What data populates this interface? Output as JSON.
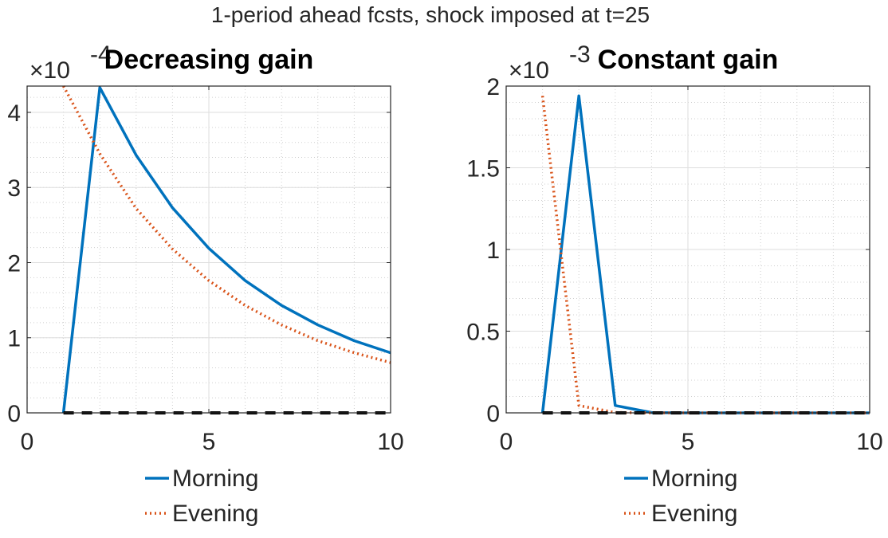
{
  "figure": {
    "suptitle": "1-period ahead fcsts, shock imposed at t=25"
  },
  "chart_data": [
    {
      "type": "line",
      "title": "Decreasing gain",
      "xlabel": "",
      "ylabel": "",
      "xlim": [
        0,
        10
      ],
      "ylim": [
        0,
        4.35
      ],
      "y_exponent_label": "×10",
      "y_exponent_power": "-4",
      "xticks": [
        0,
        5,
        10
      ],
      "yticks": [
        0,
        1,
        2,
        3,
        4
      ],
      "grid": true,
      "minor_grid": true,
      "legend_position": "bottom",
      "series": [
        {
          "name": "Morning",
          "color": "#0072BD",
          "style": "solid",
          "x": [
            1,
            2,
            3,
            4,
            5,
            6,
            7,
            8,
            9,
            10
          ],
          "y": [
            0,
            4.33,
            3.43,
            2.73,
            2.19,
            1.76,
            1.43,
            1.17,
            0.96,
            0.8
          ]
        },
        {
          "name": "Evening",
          "color": "#D95319",
          "style": "dotted",
          "x": [
            1,
            2,
            3,
            4,
            5,
            6,
            7,
            8,
            9,
            10
          ],
          "y": [
            4.35,
            3.45,
            2.72,
            2.18,
            1.76,
            1.43,
            1.17,
            0.96,
            0.8,
            0.67
          ]
        },
        {
          "name": "",
          "color": "#000000",
          "style": "dashed",
          "x": [
            1,
            2,
            3,
            4,
            5,
            6,
            7,
            8,
            9,
            10
          ],
          "y": [
            0,
            0,
            0,
            0,
            0,
            0,
            0,
            0,
            0,
            0
          ]
        }
      ]
    },
    {
      "type": "line",
      "title": "Constant gain",
      "xlabel": "",
      "ylabel": "",
      "xlim": [
        0,
        10
      ],
      "ylim": [
        0,
        2
      ],
      "y_exponent_label": "×10",
      "y_exponent_power": "-3",
      "xticks": [
        0,
        5,
        10
      ],
      "yticks": [
        0,
        0.5,
        1,
        1.5,
        2
      ],
      "grid": true,
      "minor_grid": true,
      "legend_position": "bottom",
      "series": [
        {
          "name": "Morning",
          "color": "#0072BD",
          "style": "solid",
          "x": [
            1,
            2,
            3,
            4,
            5,
            6,
            7,
            8,
            9,
            10
          ],
          "y": [
            0,
            1.94,
            0.045,
            0.002,
            0,
            0,
            0,
            0,
            0,
            0
          ]
        },
        {
          "name": "Evening",
          "color": "#D95319",
          "style": "dotted",
          "x": [
            1,
            2,
            3,
            4,
            5,
            6,
            7,
            8,
            9,
            10
          ],
          "y": [
            1.94,
            0.045,
            0.002,
            0,
            0,
            0,
            0,
            0,
            0,
            0
          ]
        },
        {
          "name": "",
          "color": "#000000",
          "style": "dashed",
          "x": [
            1,
            2,
            3,
            4,
            5,
            6,
            7,
            8,
            9,
            10
          ],
          "y": [
            0,
            0,
            0,
            0,
            0,
            0,
            0,
            0,
            0,
            0
          ]
        }
      ]
    }
  ]
}
